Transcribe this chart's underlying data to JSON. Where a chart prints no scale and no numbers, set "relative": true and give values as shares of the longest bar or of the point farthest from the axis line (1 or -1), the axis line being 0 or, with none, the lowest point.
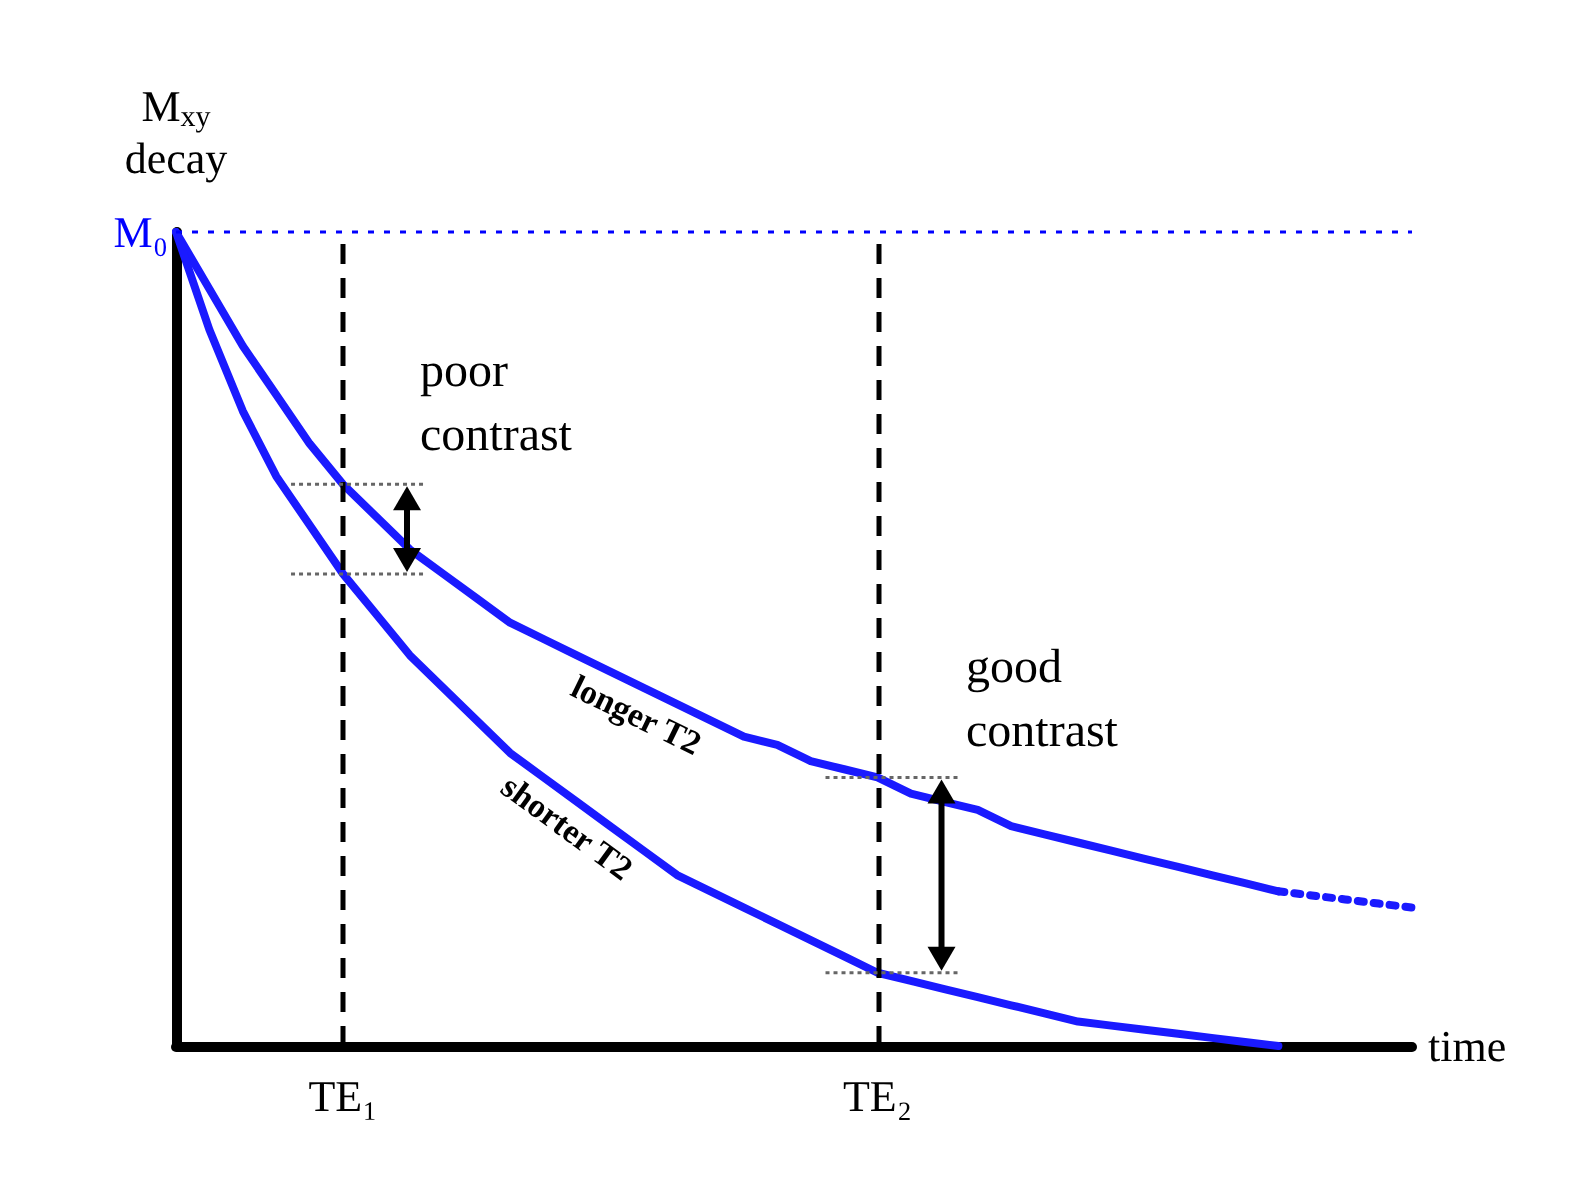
{
  "chart_data": {
    "type": "line",
    "relative": true,
    "xlabel": "time",
    "ylabel": "M$_{xy}$ decay",
    "legend": false,
    "grid": false,
    "marker": "none",
    "line_style": "solid",
    "categories": [
      null,
      null,
      null,
      null,
      null,
      "TE₁",
      null,
      null,
      null,
      null,
      null,
      null,
      null,
      null,
      null,
      null,
      null,
      null,
      null,
      null,
      null,
      "TE₂",
      null,
      null,
      null,
      null,
      null,
      null,
      null,
      null,
      null,
      null,
      null,
      null,
      null,
      null,
      null,
      null
    ],
    "series": [
      {
        "name": "longer T2",
        "color": "#1a1aff",
        "values": [
          1,
          0.93,
          0.86,
          0.8,
          0.74,
          0.69,
          0.65,
          0.61,
          0.58,
          0.55,
          0.52,
          0.5,
          0.48,
          0.46,
          0.44,
          0.42,
          0.4,
          0.38,
          0.37,
          0.35,
          0.34,
          0.33,
          0.31,
          0.3,
          0.29,
          0.27,
          0.26,
          0.25,
          0.24,
          0.23,
          0.22,
          0.21,
          0.2,
          0.19,
          null,
          null,
          null,
          null
        ]
      },
      {
        "color": "#1a1aff",
        "line_style": "dotted",
        "values": [
          null,
          null,
          null,
          null,
          null,
          null,
          null,
          null,
          null,
          null,
          null,
          null,
          null,
          null,
          null,
          null,
          null,
          null,
          null,
          null,
          null,
          null,
          null,
          null,
          null,
          null,
          null,
          null,
          null,
          null,
          null,
          null,
          null,
          0.19,
          0.185,
          0.18,
          0.175,
          0.17
        ]
      },
      {
        "name": "shorter T2",
        "color": "#1a1aff",
        "values": [
          1,
          0.88,
          0.78,
          0.7,
          0.64,
          0.58,
          0.53,
          0.48,
          0.44,
          0.4,
          0.36,
          0.33,
          0.3,
          0.27,
          0.24,
          0.21,
          0.19,
          0.17,
          0.15,
          0.13,
          0.11,
          0.09,
          0.08,
          0.07,
          0.06,
          0.05,
          0.04,
          0.03,
          0.025,
          0.02,
          0.015,
          0.01,
          0.005,
          0,
          null,
          null,
          null,
          null
        ]
      }
    ],
    "ref_lines": [
      {
        "axis": "x",
        "value": "TE₁",
        "color": "#000000",
        "line_style": "dashed"
      },
      {
        "axis": "x",
        "value": "TE₂",
        "color": "#000000",
        "line_style": "dashed"
      },
      {
        "axis": "y",
        "value": 1,
        "label": "M₀",
        "color": "#0000ff",
        "line_style": "dotted"
      }
    ],
    "annotations": [
      "poor contrast",
      "good contrast"
    ]
  }
}
